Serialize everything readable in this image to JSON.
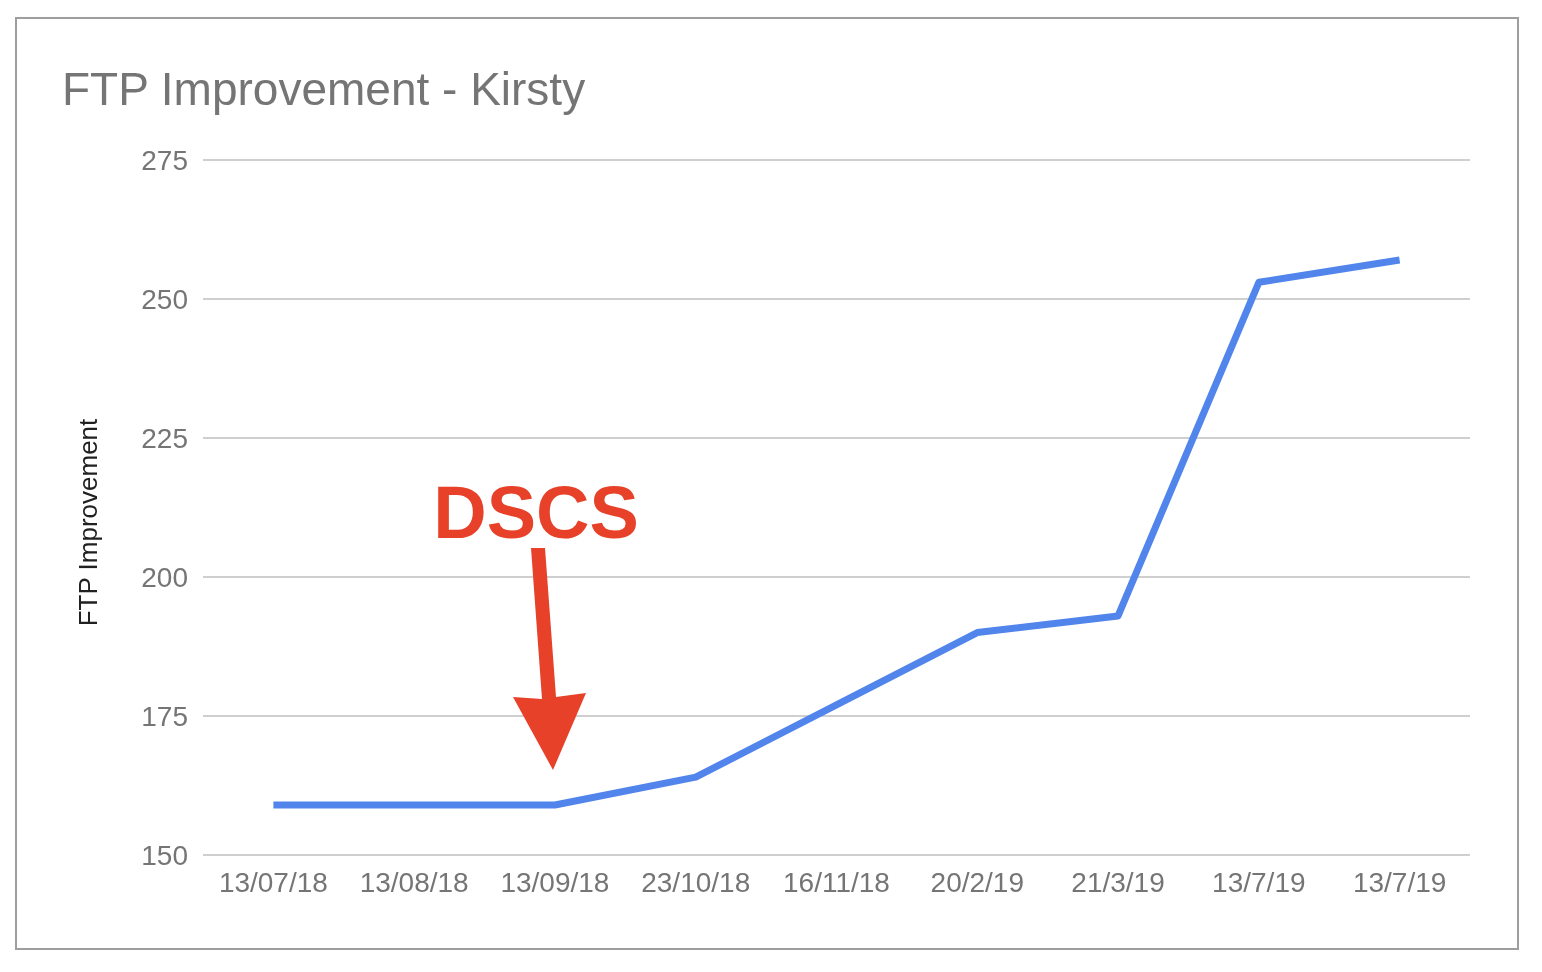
{
  "chart_data": {
    "type": "line",
    "title": "FTP Improvement - Kirsty",
    "ylabel": "FTP Improvement",
    "categories": [
      "13/07/18",
      "13/08/18",
      "13/09/18",
      "23/10/18",
      "16/11/18",
      "20/2/19",
      "21/3/19",
      "13/7/19",
      "13/7/19"
    ],
    "values": [
      159,
      159,
      159,
      164,
      177,
      190,
      193,
      253,
      257
    ],
    "color": "#5185ec",
    "line_style": "solid",
    "ylim": [
      150,
      275
    ],
    "yticks": [
      150,
      175,
      200,
      225,
      250,
      275
    ],
    "grid": "y",
    "annotations": [
      "DSCS"
    ]
  }
}
